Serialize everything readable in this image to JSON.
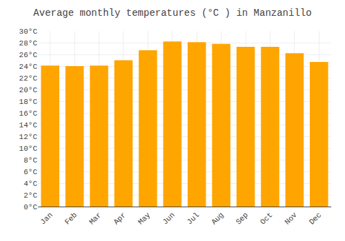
{
  "chart_data": {
    "type": "bar",
    "title": "Average monthly temperatures (°C ) in Manzanillo",
    "categories": [
      "Jan",
      "Feb",
      "Mar",
      "Apr",
      "May",
      "Jun",
      "Jul",
      "Aug",
      "Sep",
      "Oct",
      "Nov",
      "Dec"
    ],
    "values": [
      24.1,
      24.0,
      24.1,
      25.0,
      26.7,
      28.2,
      28.1,
      27.8,
      27.3,
      27.3,
      26.2,
      24.7
    ],
    "color": "#FFA500",
    "ylim": [
      0,
      30
    ],
    "yticks": [
      {
        "value": 0,
        "label": "0°C"
      },
      {
        "value": 2,
        "label": "2°C"
      },
      {
        "value": 4,
        "label": "4°C"
      },
      {
        "value": 6,
        "label": "6°C"
      },
      {
        "value": 8,
        "label": "8°C"
      },
      {
        "value": 10,
        "label": "10°C"
      },
      {
        "value": 12,
        "label": "12°C"
      },
      {
        "value": 14,
        "label": "14°C"
      },
      {
        "value": 16,
        "label": "16°C"
      },
      {
        "value": 18,
        "label": "18°C"
      },
      {
        "value": 20,
        "label": "20°C"
      },
      {
        "value": 22,
        "label": "22°C"
      },
      {
        "value": 24,
        "label": "24°C"
      },
      {
        "value": 26,
        "label": "26°C"
      },
      {
        "value": 28,
        "label": "28°C"
      },
      {
        "value": 30,
        "label": "30°C"
      }
    ],
    "grid": true
  }
}
